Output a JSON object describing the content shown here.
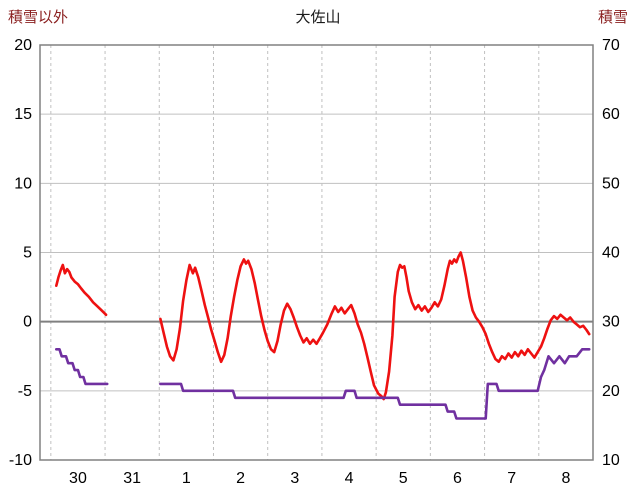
{
  "header": {
    "left_axis_title": "積雪以外",
    "chart_title": "大佐山",
    "right_axis_title": "積雪"
  },
  "colors": {
    "temperature_line": "#ee1111",
    "snow_line": "#7030a0",
    "grid": "#c0c0c0",
    "zero_line": "#808080",
    "border": "#808080",
    "tick_text": "#000000",
    "axis_title_text": "#8b2020",
    "chart_title_text": "#1a1a1a",
    "background": "#ffffff"
  },
  "chart_data": {
    "type": "line",
    "title": "大佐山",
    "x_tick_labels": [
      "30",
      "31",
      "1",
      "2",
      "3",
      "4",
      "5",
      "6",
      "7",
      "8"
    ],
    "x_domain_days": [
      -0.2,
      10
    ],
    "left_axis": {
      "title": "積雪以外",
      "ticks": [
        20,
        15,
        10,
        5,
        0,
        -5,
        -10
      ],
      "range": [
        -10,
        20
      ]
    },
    "right_axis": {
      "title": "積雪",
      "ticks": [
        70,
        60,
        50,
        40,
        30,
        20,
        10
      ],
      "range": [
        10,
        70
      ]
    },
    "grid": {
      "h_lines_left": [
        15,
        10,
        5,
        -5
      ],
      "zero_line_left": 0,
      "v_lines_days": [
        0,
        1,
        2,
        3,
        4,
        5,
        6,
        7,
        8,
        9
      ]
    },
    "series": [
      {
        "name": "積雪以外",
        "yaxis": "left",
        "color": "#ee1111",
        "segments": [
          [
            [
              0.1,
              2.6
            ],
            [
              0.14,
              3.2
            ],
            [
              0.18,
              3.7
            ],
            [
              0.22,
              4.1
            ],
            [
              0.26,
              3.5
            ],
            [
              0.3,
              3.8
            ],
            [
              0.34,
              3.6
            ],
            [
              0.38,
              3.2
            ],
            [
              0.44,
              2.9
            ],
            [
              0.5,
              2.7
            ],
            [
              0.56,
              2.4
            ],
            [
              0.62,
              2.1
            ],
            [
              0.7,
              1.8
            ],
            [
              0.78,
              1.4
            ],
            [
              0.86,
              1.1
            ],
            [
              0.94,
              0.8
            ],
            [
              1.02,
              0.5
            ]
          ],
          [
            [
              2.02,
              0.2
            ],
            [
              2.08,
              -0.8
            ],
            [
              2.14,
              -1.8
            ],
            [
              2.2,
              -2.5
            ],
            [
              2.26,
              -2.8
            ],
            [
              2.32,
              -2.0
            ],
            [
              2.38,
              -0.5
            ],
            [
              2.44,
              1.5
            ],
            [
              2.5,
              3.0
            ],
            [
              2.56,
              4.1
            ],
            [
              2.62,
              3.5
            ],
            [
              2.66,
              3.9
            ],
            [
              2.72,
              3.2
            ],
            [
              2.78,
              2.2
            ],
            [
              2.84,
              1.2
            ],
            [
              2.9,
              0.3
            ],
            [
              2.96,
              -0.6
            ],
            [
              3.02,
              -1.4
            ],
            [
              3.08,
              -2.2
            ],
            [
              3.14,
              -2.9
            ],
            [
              3.2,
              -2.4
            ],
            [
              3.26,
              -1.2
            ],
            [
              3.32,
              0.4
            ],
            [
              3.38,
              1.8
            ],
            [
              3.44,
              3.0
            ],
            [
              3.5,
              4.0
            ],
            [
              3.56,
              4.5
            ],
            [
              3.6,
              4.2
            ],
            [
              3.64,
              4.4
            ],
            [
              3.7,
              3.8
            ],
            [
              3.76,
              2.8
            ],
            [
              3.82,
              1.6
            ],
            [
              3.88,
              0.4
            ],
            [
              3.94,
              -0.6
            ],
            [
              4.0,
              -1.4
            ],
            [
              4.06,
              -2.0
            ],
            [
              4.12,
              -2.2
            ],
            [
              4.18,
              -1.4
            ],
            [
              4.24,
              -0.2
            ],
            [
              4.3,
              0.8
            ],
            [
              4.36,
              1.3
            ],
            [
              4.42,
              0.9
            ],
            [
              4.48,
              0.3
            ],
            [
              4.54,
              -0.4
            ],
            [
              4.6,
              -1.0
            ],
            [
              4.66,
              -1.5
            ],
            [
              4.72,
              -1.2
            ],
            [
              4.78,
              -1.6
            ],
            [
              4.84,
              -1.3
            ],
            [
              4.9,
              -1.6
            ],
            [
              4.96,
              -1.2
            ],
            [
              5.02,
              -0.8
            ],
            [
              5.1,
              -0.2
            ],
            [
              5.18,
              0.6
            ],
            [
              5.24,
              1.1
            ],
            [
              5.3,
              0.7
            ],
            [
              5.36,
              1.0
            ],
            [
              5.42,
              0.6
            ],
            [
              5.48,
              0.9
            ],
            [
              5.54,
              1.2
            ],
            [
              5.6,
              0.6
            ],
            [
              5.66,
              -0.2
            ],
            [
              5.72,
              -0.8
            ],
            [
              5.78,
              -1.6
            ],
            [
              5.84,
              -2.6
            ],
            [
              5.9,
              -3.6
            ],
            [
              5.96,
              -4.6
            ],
            [
              6.04,
              -5.2
            ],
            [
              6.1,
              -5.4
            ],
            [
              6.14,
              -5.6
            ],
            [
              6.18,
              -5.1
            ],
            [
              6.24,
              -3.6
            ],
            [
              6.3,
              -1.0
            ],
            [
              6.34,
              1.8
            ],
            [
              6.4,
              3.6
            ],
            [
              6.44,
              4.1
            ],
            [
              6.48,
              3.9
            ],
            [
              6.52,
              4.0
            ],
            [
              6.56,
              3.2
            ],
            [
              6.6,
              2.2
            ],
            [
              6.66,
              1.4
            ],
            [
              6.72,
              0.9
            ],
            [
              6.78,
              1.2
            ],
            [
              6.84,
              0.8
            ],
            [
              6.9,
              1.1
            ],
            [
              6.96,
              0.7
            ],
            [
              7.02,
              1.0
            ],
            [
              7.08,
              1.4
            ],
            [
              7.14,
              1.1
            ],
            [
              7.2,
              1.6
            ],
            [
              7.26,
              2.6
            ],
            [
              7.32,
              3.8
            ],
            [
              7.36,
              4.4
            ],
            [
              7.4,
              4.2
            ],
            [
              7.44,
              4.5
            ],
            [
              7.48,
              4.3
            ],
            [
              7.52,
              4.7
            ],
            [
              7.56,
              5.0
            ],
            [
              7.6,
              4.4
            ],
            [
              7.66,
              3.2
            ],
            [
              7.72,
              1.8
            ],
            [
              7.78,
              0.8
            ],
            [
              7.84,
              0.3
            ],
            [
              7.9,
              0.0
            ],
            [
              7.96,
              -0.4
            ],
            [
              8.02,
              -0.9
            ],
            [
              8.08,
              -1.6
            ],
            [
              8.14,
              -2.2
            ],
            [
              8.2,
              -2.7
            ],
            [
              8.26,
              -2.9
            ],
            [
              8.32,
              -2.5
            ],
            [
              8.38,
              -2.7
            ],
            [
              8.44,
              -2.3
            ],
            [
              8.5,
              -2.6
            ],
            [
              8.56,
              -2.2
            ],
            [
              8.62,
              -2.5
            ],
            [
              8.68,
              -2.1
            ],
            [
              8.74,
              -2.4
            ],
            [
              8.8,
              -2.0
            ],
            [
              8.86,
              -2.3
            ],
            [
              8.92,
              -2.6
            ],
            [
              8.98,
              -2.2
            ],
            [
              9.04,
              -1.8
            ],
            [
              9.1,
              -1.2
            ],
            [
              9.16,
              -0.5
            ],
            [
              9.22,
              0.1
            ],
            [
              9.28,
              0.4
            ],
            [
              9.34,
              0.2
            ],
            [
              9.4,
              0.5
            ],
            [
              9.46,
              0.3
            ],
            [
              9.52,
              0.1
            ],
            [
              9.58,
              0.3
            ],
            [
              9.64,
              0.0
            ],
            [
              9.7,
              -0.2
            ],
            [
              9.76,
              -0.4
            ],
            [
              9.82,
              -0.3
            ],
            [
              9.88,
              -0.6
            ],
            [
              9.93,
              -0.9
            ]
          ]
        ]
      },
      {
        "name": "積雪",
        "yaxis": "right",
        "color": "#7030a0",
        "segments": [
          [
            [
              0.1,
              26
            ],
            [
              0.16,
              26
            ],
            [
              0.2,
              25
            ],
            [
              0.28,
              25
            ],
            [
              0.32,
              24
            ],
            [
              0.4,
              24
            ],
            [
              0.44,
              23
            ],
            [
              0.5,
              23
            ],
            [
              0.54,
              22
            ],
            [
              0.6,
              22
            ],
            [
              0.64,
              21
            ],
            [
              1.04,
              21
            ]
          ],
          [
            [
              2.02,
              21
            ],
            [
              2.4,
              21
            ],
            [
              2.44,
              20
            ],
            [
              3.36,
              20
            ],
            [
              3.4,
              19
            ],
            [
              5.4,
              19
            ],
            [
              5.44,
              20
            ],
            [
              5.6,
              20
            ],
            [
              5.64,
              19
            ],
            [
              6.4,
              19
            ],
            [
              6.44,
              18
            ],
            [
              7.28,
              18
            ],
            [
              7.32,
              17
            ],
            [
              7.44,
              17
            ],
            [
              7.48,
              16
            ],
            [
              8.02,
              16
            ],
            [
              8.06,
              21
            ],
            [
              8.22,
              21
            ],
            [
              8.26,
              20
            ],
            [
              8.98,
              20
            ],
            [
              9.04,
              22
            ],
            [
              9.1,
              23
            ],
            [
              9.18,
              25
            ],
            [
              9.28,
              24
            ],
            [
              9.38,
              25
            ],
            [
              9.48,
              24
            ],
            [
              9.56,
              25
            ],
            [
              9.7,
              25
            ],
            [
              9.8,
              26
            ],
            [
              9.93,
              26
            ]
          ]
        ]
      }
    ]
  }
}
